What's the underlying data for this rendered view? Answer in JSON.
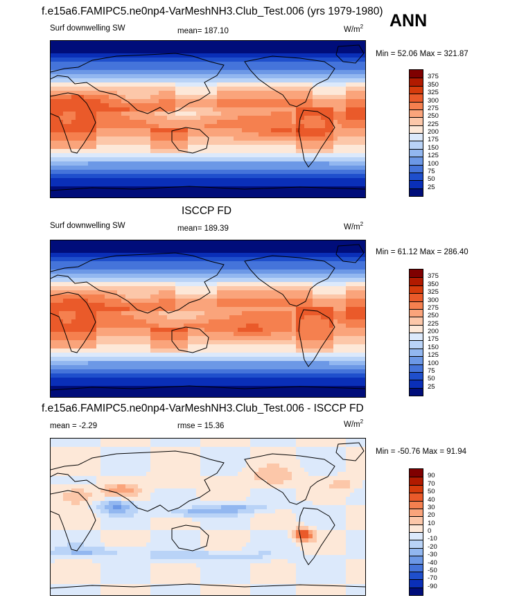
{
  "header": {
    "main_title": "f.e15a6.FAMIPC5.ne0np4-VarMeshNH3.Club_Test.006 (yrs 1979-1980)",
    "season": "ANN"
  },
  "panels": [
    {
      "title": "",
      "left_label": "Surf downwelling SW",
      "center_label": "mean= 187.10",
      "units": "W/m",
      "units_sup": "2",
      "minmax": "Min =  52.06 Max = 321.87",
      "levels": [
        "375",
        "350",
        "325",
        "300",
        "275",
        "250",
        "225",
        "200",
        "175",
        "150",
        "125",
        "100",
        "75",
        "50",
        "25"
      ]
    },
    {
      "title": "ISCCP FD",
      "left_label": "Surf downwelling SW",
      "center_label": "mean= 189.39",
      "units": "W/m",
      "units_sup": "2",
      "minmax": "Min =  61.12 Max = 286.40",
      "levels": [
        "375",
        "350",
        "325",
        "300",
        "275",
        "250",
        "225",
        "200",
        "175",
        "150",
        "125",
        "100",
        "75",
        "50",
        "25"
      ]
    },
    {
      "title": "f.e15a6.FAMIPC5.ne0np4-VarMeshNH3.Club_Test.006 - ISCCP FD",
      "left_label": "mean =  -2.29",
      "center_label": "rmse =  15.36",
      "units": "W/m",
      "units_sup": "2",
      "minmax": "Min = -50.76 Max =  91.94",
      "levels": [
        "90",
        "70",
        "50",
        "40",
        "30",
        "20",
        "10",
        "0",
        "-10",
        "-20",
        "-30",
        "-40",
        "-50",
        "-70",
        "-90"
      ]
    }
  ],
  "colors": {
    "scale": [
      "#7f0000",
      "#b11a00",
      "#d63b0c",
      "#ea5a2a",
      "#f5804f",
      "#faa47b",
      "#fcc7a9",
      "#fde8d8",
      "#dce9fb",
      "#b9d3f7",
      "#92b7f0",
      "#6c98e6",
      "#4574da",
      "#1f4fcc",
      "#0a2fb8",
      "#000d7a"
    ]
  },
  "chart_data": [
    {
      "type": "heatmap",
      "title": "f.e15a6.FAMIPC5.ne0np4-VarMeshNH3.Club_Test.006 (yrs 1979-1980)",
      "variable": "Surf downwelling SW",
      "units": "W/m2",
      "mean": 187.1,
      "min": 52.06,
      "max": 321.87,
      "contour_levels": [
        25,
        50,
        75,
        100,
        125,
        150,
        175,
        200,
        225,
        250,
        275,
        300,
        325,
        350,
        375
      ]
    },
    {
      "type": "heatmap",
      "title": "ISCCP FD",
      "variable": "Surf downwelling SW",
      "units": "W/m2",
      "mean": 189.39,
      "min": 61.12,
      "max": 286.4,
      "contour_levels": [
        25,
        50,
        75,
        100,
        125,
        150,
        175,
        200,
        225,
        250,
        275,
        300,
        325,
        350,
        375
      ]
    },
    {
      "type": "heatmap",
      "title": "f.e15a6.FAMIPC5.ne0np4-VarMeshNH3.Club_Test.006 - ISCCP FD",
      "units": "W/m2",
      "mean": -2.29,
      "rmse": 15.36,
      "min": -50.76,
      "max": 91.94,
      "contour_levels": [
        -90,
        -70,
        -50,
        -40,
        -30,
        -20,
        -10,
        0,
        10,
        20,
        30,
        40,
        50,
        70,
        90
      ]
    }
  ]
}
